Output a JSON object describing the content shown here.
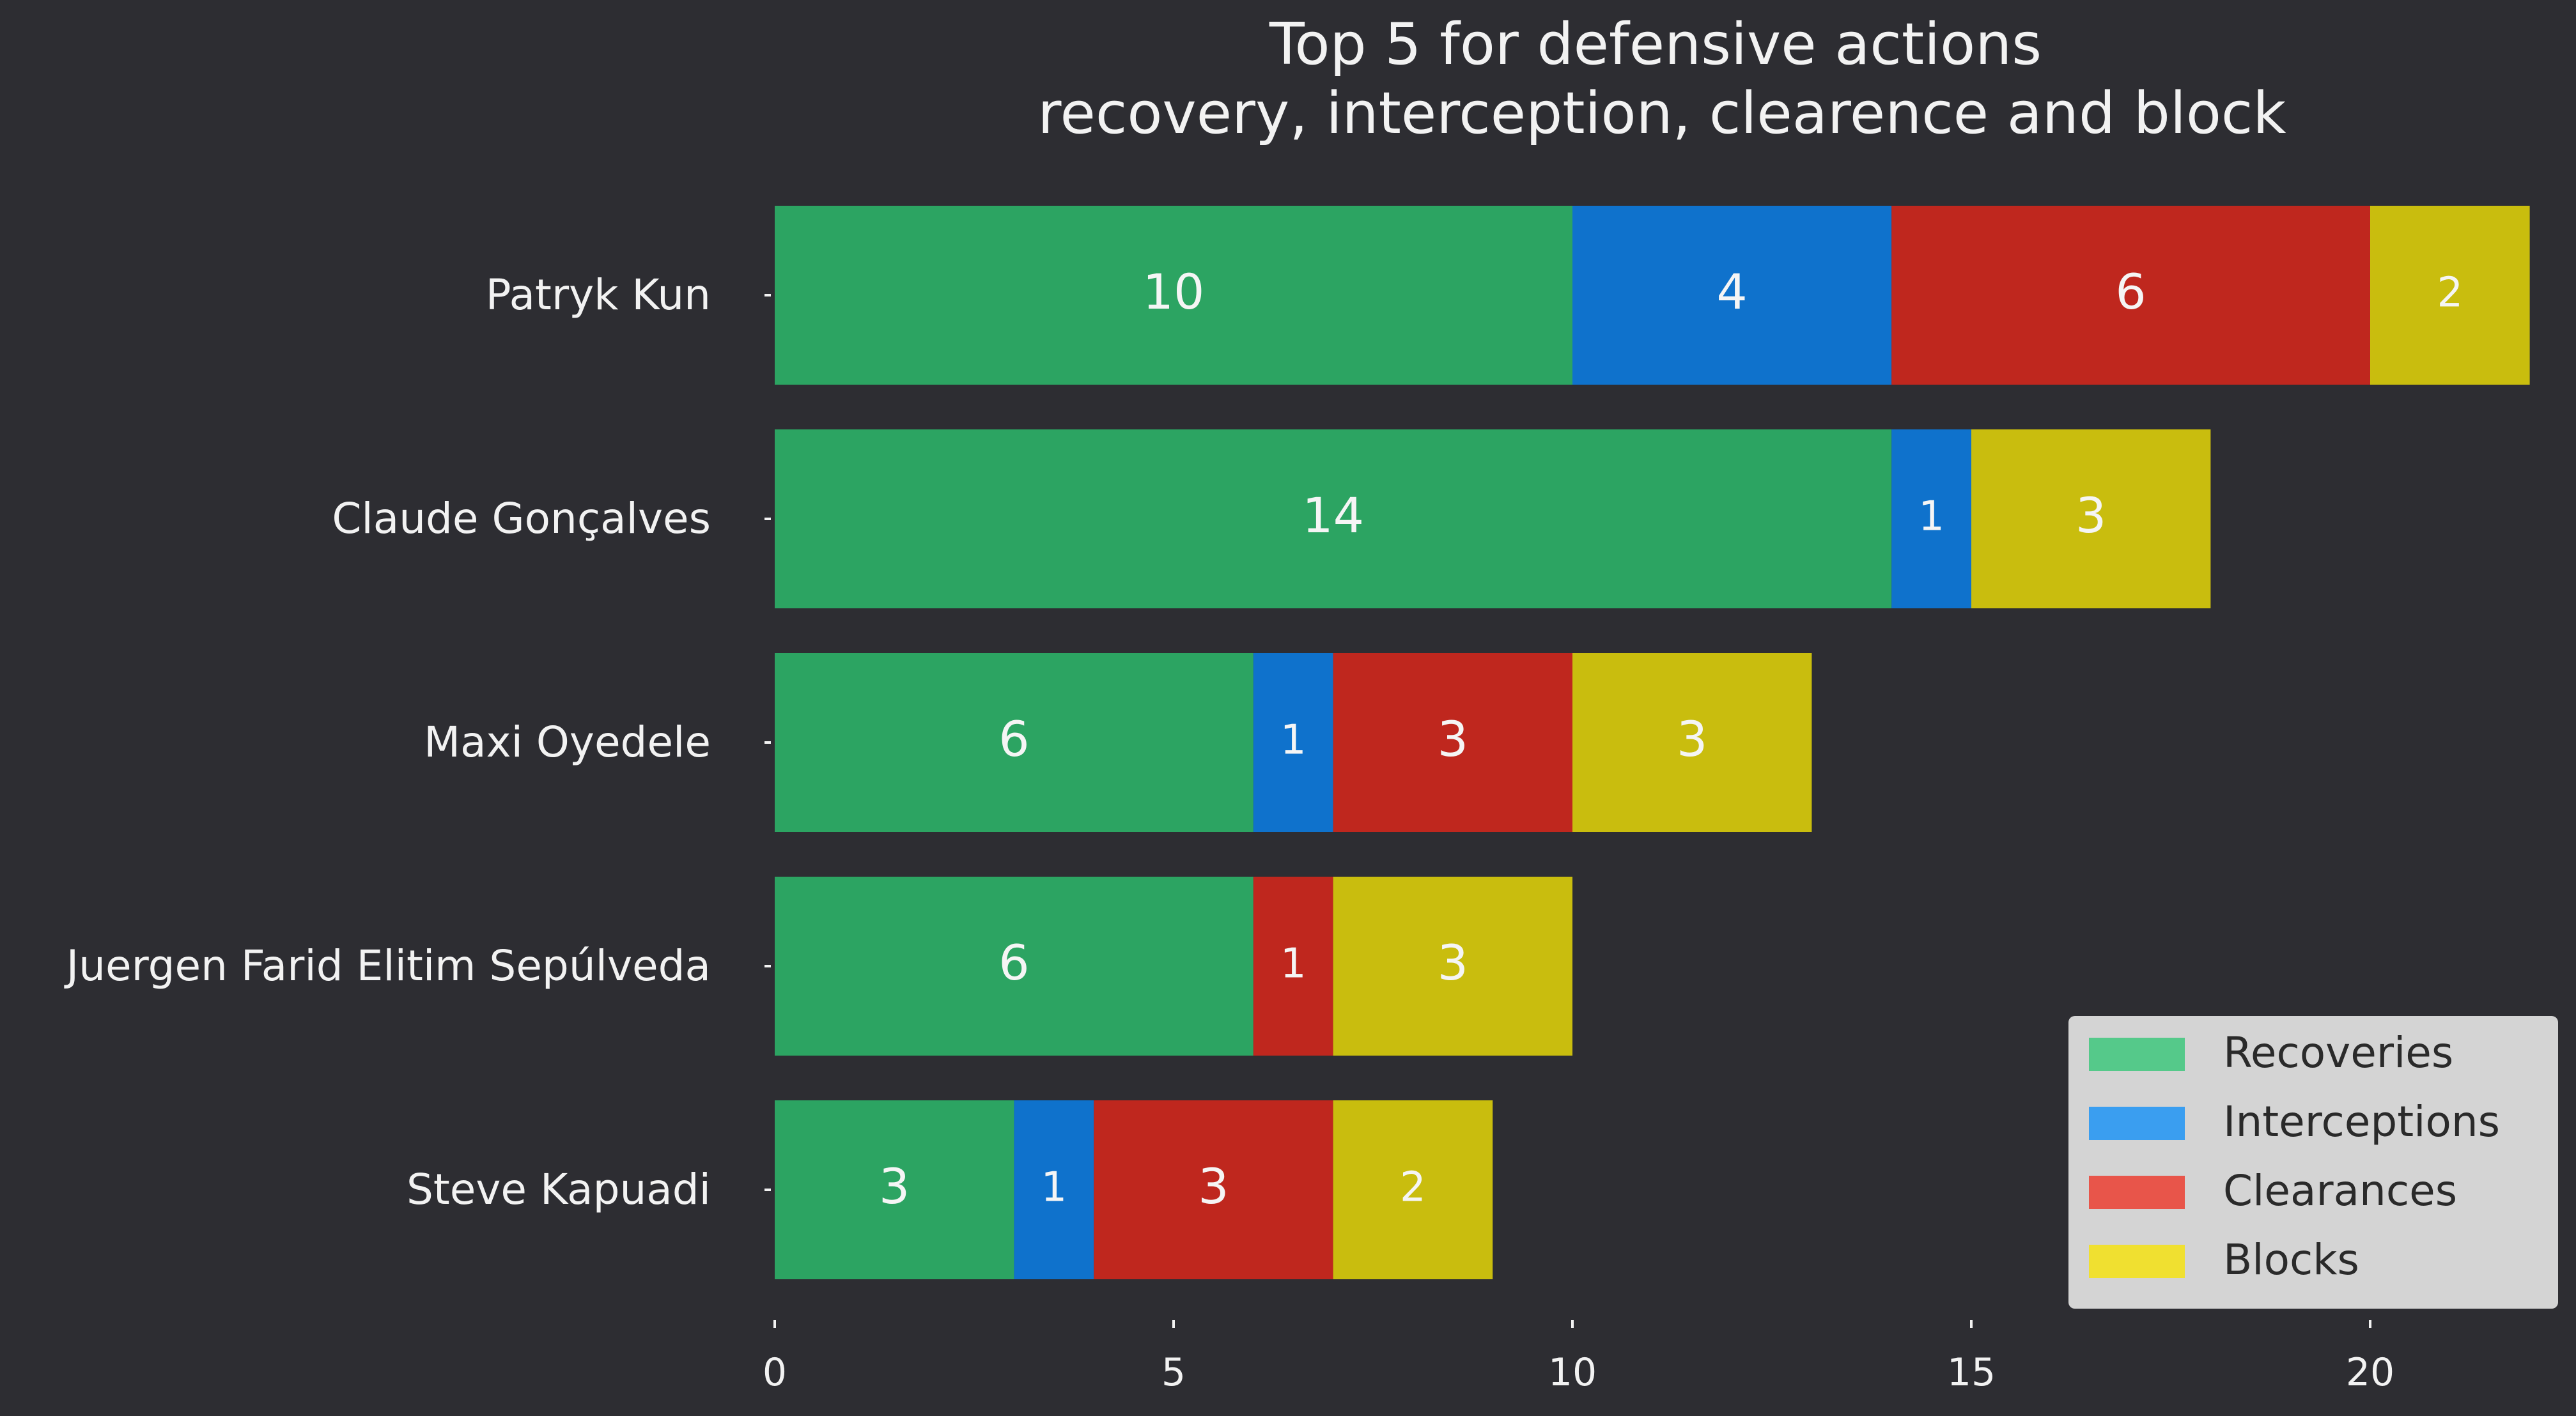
{
  "chart_data": {
    "type": "bar",
    "orientation": "horizontal",
    "stacked": true,
    "title": [
      "Top 5 for defensive actions",
      "recovery, interception, clearence and block"
    ],
    "categories": [
      "Patryk Kun",
      "Claude Gonçalves",
      "Maxi Oyedele",
      "Juergen Farid Elitim Sepúlveda",
      "Steve Kapuadi"
    ],
    "series": [
      {
        "name": "Recoveries",
        "color": "#2ca462",
        "legend_color": "#55c98a",
        "values": [
          10,
          14,
          6,
          6,
          3
        ]
      },
      {
        "name": "Interceptions",
        "color": "#0f72cc",
        "legend_color": "#3a9ef0",
        "values": [
          4,
          1,
          1,
          0,
          1
        ]
      },
      {
        "name": "Clearances",
        "color": "#bf271e",
        "legend_color": "#e8554a",
        "values": [
          6,
          0,
          3,
          1,
          3
        ]
      },
      {
        "name": "Blocks",
        "color": "#c9bd0e",
        "legend_color": "#f0e030",
        "values": [
          2,
          3,
          3,
          3,
          2
        ]
      }
    ],
    "xlim": [
      0,
      22.5
    ],
    "xticks": [
      0,
      5,
      10,
      15,
      20
    ],
    "xlabel": "",
    "ylabel": "",
    "grid": false,
    "legend_position": "bottom-right",
    "background": "#2d2d32",
    "legend_background": "#d4d4d4"
  }
}
